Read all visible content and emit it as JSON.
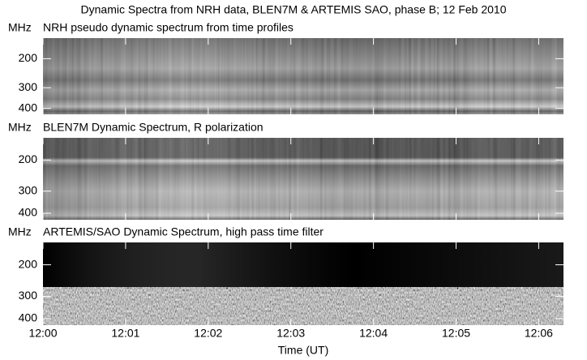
{
  "title": "Dynamic Spectra from NRH data, BLEN7M & ARTEMIS SAO, phase B; 12 Feb 2010",
  "chart_data": [
    {
      "type": "spectrogram",
      "ylabel": "MHz",
      "title": "NRH pseudo dynamic spectrum from time profiles",
      "ylim": [
        150,
        435
      ],
      "yticks": [
        200,
        300,
        400
      ],
      "log_y": true
    },
    {
      "type": "spectrogram",
      "ylabel": "MHz",
      "title": "BLEN7M Dynamic Spectrum, R polarization",
      "ylim": [
        150,
        435
      ],
      "yticks": [
        200,
        300,
        400
      ],
      "log_y": true
    },
    {
      "type": "spectrogram",
      "ylabel": "MHz",
      "title": "ARTEMIS/SAO Dynamic Spectrum, high pass time filter",
      "ylim": [
        150,
        435
      ],
      "yticks": [
        200,
        300,
        400
      ],
      "log_y": true,
      "xlabel": "Time (UT)",
      "xlim": [
        720,
        726.3
      ],
      "xticks": [
        {
          "value": 720,
          "label": "12:00"
        },
        {
          "value": 721,
          "label": "12:01"
        },
        {
          "value": 722,
          "label": "12:02"
        },
        {
          "value": 723,
          "label": "12:03"
        },
        {
          "value": 724,
          "label": "12:04"
        },
        {
          "value": 725,
          "label": "12:05"
        },
        {
          "value": 726,
          "label": "12:06"
        }
      ]
    }
  ]
}
